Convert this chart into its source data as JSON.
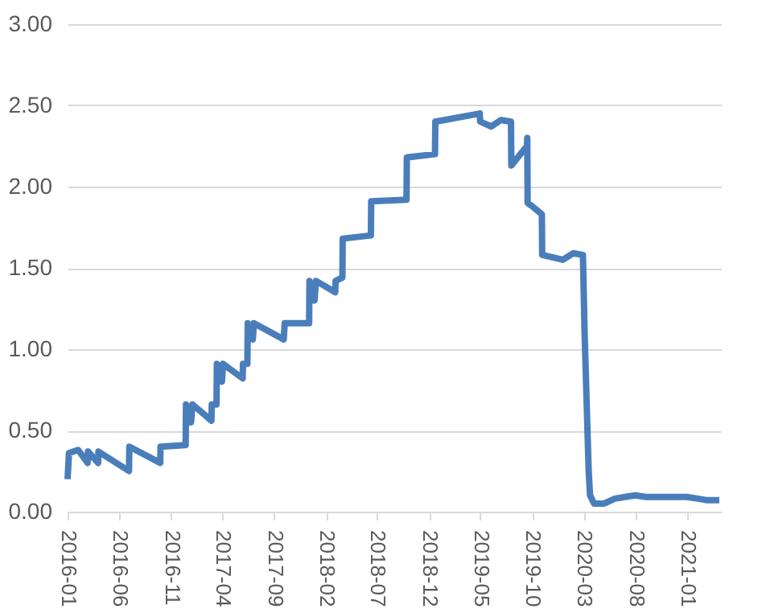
{
  "chart_data": {
    "type": "line",
    "x": [
      "2016-01-01",
      "2016-01-05",
      "2016-02-01",
      "2016-02-29",
      "2016-03-01",
      "2016-03-31",
      "2016-04-01",
      "2016-06-30",
      "2016-07-01",
      "2016-09-30",
      "2016-10-01",
      "2016-12-14",
      "2016-12-15",
      "2016-12-30",
      "2017-01-03",
      "2017-02-28",
      "2017-03-01",
      "2017-03-15",
      "2017-03-16",
      "2017-03-31",
      "2017-04-03",
      "2017-05-31",
      "2017-06-01",
      "2017-06-14",
      "2017-06-15",
      "2017-06-30",
      "2017-07-03",
      "2017-09-29",
      "2017-10-02",
      "2017-12-13",
      "2017-12-14",
      "2017-12-29",
      "2018-01-02",
      "2018-02-28",
      "2018-03-01",
      "2018-03-21",
      "2018-03-22",
      "2018-06-13",
      "2018-06-14",
      "2018-09-26",
      "2018-09-27",
      "2018-12-19",
      "2018-12-20",
      "2019-04-30",
      "2019-05-01",
      "2019-06-03",
      "2019-07-01",
      "2019-07-31",
      "2019-08-01",
      "2019-09-16",
      "2019-09-17",
      "2019-09-18",
      "2019-10-01",
      "2019-10-30",
      "2019-10-31",
      "2019-12-31",
      "2020-01-30",
      "2020-02-28",
      "2020-03-04",
      "2020-03-16",
      "2020-03-20",
      "2020-04-01",
      "2020-05-01",
      "2020-06-01",
      "2020-07-01",
      "2020-08-01",
      "2020-09-01",
      "2020-12-31",
      "2021-02-01",
      "2021-03-01",
      "2021-04-05"
    ],
    "series": [
      {
        "color": "#4a7ebb",
        "values": [
          0.2,
          0.36,
          0.38,
          0.3,
          0.37,
          0.3,
          0.37,
          0.25,
          0.4,
          0.3,
          0.4,
          0.41,
          0.66,
          0.55,
          0.66,
          0.56,
          0.66,
          0.66,
          0.91,
          0.8,
          0.91,
          0.82,
          0.91,
          0.91,
          1.16,
          1.06,
          1.16,
          1.06,
          1.16,
          1.16,
          1.42,
          1.3,
          1.42,
          1.35,
          1.42,
          1.44,
          1.68,
          1.7,
          1.91,
          1.92,
          2.18,
          2.2,
          2.4,
          2.45,
          2.4,
          2.37,
          2.41,
          2.4,
          2.13,
          2.25,
          2.3,
          1.9,
          1.88,
          1.83,
          1.58,
          1.55,
          1.59,
          1.58,
          1.1,
          0.25,
          0.1,
          0.05,
          0.05,
          0.08,
          0.09,
          0.1,
          0.09,
          0.09,
          0.08,
          0.07,
          0.07
        ]
      }
    ],
    "xlim": [
      "2016-01-01",
      "2021-04-10"
    ],
    "xticks": [
      "2016-01",
      "2016-06",
      "2016-11",
      "2017-04",
      "2017-09",
      "2018-02",
      "2018-07",
      "2018-12",
      "2019-05",
      "2019-10",
      "2020-03",
      "2020-08",
      "2021-01"
    ],
    "ylim": [
      0,
      3
    ],
    "yticks": [
      {
        "value": 0,
        "label": "0.00"
      },
      {
        "value": 0.5,
        "label": "0.50"
      },
      {
        "value": 1,
        "label": "1.00"
      },
      {
        "value": 1.5,
        "label": "1.50"
      },
      {
        "value": 2,
        "label": "2.00"
      },
      {
        "value": 2.5,
        "label": "2.50"
      },
      {
        "value": 3,
        "label": "3.00"
      }
    ],
    "grid": "y",
    "legend": false,
    "marker": "none",
    "line_style": "solid"
  }
}
